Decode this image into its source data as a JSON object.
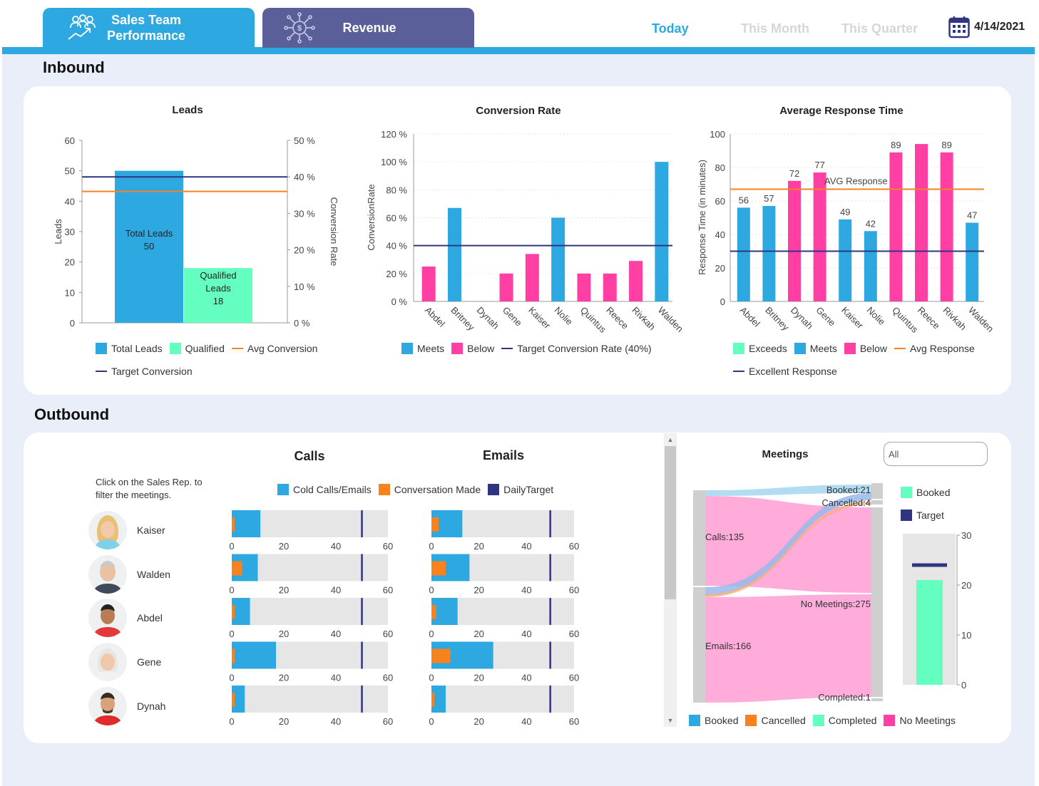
{
  "header": {
    "tabs": [
      {
        "label": "Sales Team Performance",
        "line1": "Sales Team",
        "line2": "Performance"
      },
      {
        "label": "Revenue"
      }
    ],
    "periods": [
      "Today",
      "This Month",
      "This Quarter"
    ],
    "active_period": "Today",
    "date": "4/14/2021",
    "icons": {
      "sales": "team-growth-icon",
      "revenue": "dollar-network-icon",
      "date": "calendar-icon"
    }
  },
  "colors": {
    "accent_blue": "#2ea8e0",
    "revenue_tab": "#5a5f99",
    "pink": "#ff3fa4",
    "green": "#64ffc0",
    "orange": "#f7821e",
    "navy": "#2f3580",
    "page_bg": "#e9eef9"
  },
  "inbound": {
    "title": "Inbound",
    "leads": {
      "title": "Leads",
      "left_axis_label": "Leads",
      "right_axis_label": "Conversion Rate",
      "bar_labels": [
        {
          "line1": "Total Leads",
          "line2": "50"
        },
        {
          "line1": "Qualified",
          "line2": "Leads",
          "line3": "18"
        }
      ],
      "legend": [
        "Total Leads",
        "Qualified",
        "Avg Conversion",
        "Target Conversion"
      ],
      "left_ticks": [
        "0",
        "10",
        "20",
        "30",
        "40",
        "50",
        "60"
      ],
      "right_ticks": [
        "0 %",
        "10 %",
        "20 %",
        "30 %",
        "40 %",
        "50 %"
      ]
    },
    "conversion": {
      "title": "Conversion Rate",
      "y_axis_label": "ConversionRate",
      "legend": [
        "Meets",
        "Below",
        "Target Conversion Rate (40%)"
      ],
      "y_ticks": [
        "0 %",
        "20 %",
        "40 %",
        "60 %",
        "80 %",
        "100 %",
        "120 %"
      ]
    },
    "response": {
      "title": "Average Response Time",
      "y_axis_label": "Response Time (in minutes)",
      "avg_label": "AVG Response",
      "legend": [
        "Exceeds",
        "Meets",
        "Below",
        "Avg Response",
        "Excellent Response"
      ],
      "y_ticks": [
        "0",
        "20",
        "40",
        "60",
        "80",
        "100"
      ]
    }
  },
  "outbound": {
    "title": "Outbound",
    "hint": "Click on the Sales Rep. to filter the meetings.",
    "calls_title": "Calls",
    "emails_title": "Emails",
    "legend": [
      "Cold Calls/Emails",
      "Conversation Made",
      "DailyTarget"
    ],
    "bar_ticks": [
      "0",
      "20",
      "40",
      "60"
    ],
    "reps": [
      {
        "name": "Kaiser",
        "calls": 11,
        "calls_conv": 1,
        "emails": 13,
        "emails_conv": 3
      },
      {
        "name": "Walden",
        "calls": 10,
        "calls_conv": 4,
        "emails": 16,
        "emails_conv": 6
      },
      {
        "name": "Abdel",
        "calls": 7,
        "calls_conv": 1,
        "emails": 11,
        "emails_conv": 2
      },
      {
        "name": "Gene",
        "calls": 17,
        "calls_conv": 1,
        "emails": 26,
        "emails_conv": 8
      },
      {
        "name": "Dynah",
        "calls": 5,
        "calls_conv": 1,
        "emails": 6,
        "emails_conv": 1
      }
    ],
    "daily_target": 50,
    "meetings": {
      "title": "Meetings",
      "filter_value": "All",
      "sankey_labels": [
        "Calls:135",
        "Emails:166",
        "Booked:21",
        "Cancelled:4",
        "No Meetings:275",
        "Completed:1"
      ],
      "legend": [
        "Booked",
        "Cancelled",
        "Completed",
        "No Meetings"
      ],
      "gauge_legend": [
        "Booked",
        "Target"
      ],
      "gauge_ticks": [
        "0",
        "10",
        "20",
        "30"
      ],
      "booked": 21,
      "target": 24
    }
  },
  "chart_data": [
    {
      "type": "bar",
      "title": "Leads",
      "categories": [
        "Total Leads",
        "Qualified Leads"
      ],
      "values": [
        50,
        18
      ],
      "ylabel": "Leads",
      "y2label": "Conversion Rate",
      "ylim": [
        0,
        60
      ],
      "y2lim": [
        0,
        50
      ],
      "lines": [
        {
          "name": "Avg Conversion",
          "value_pct": 36
        },
        {
          "name": "Target Conversion",
          "value_pct": 40
        }
      ],
      "legend_position": "bottom"
    },
    {
      "type": "bar",
      "title": "Conversion Rate",
      "categories": [
        "Abdel",
        "Britney",
        "Dynah",
        "Gene",
        "Kaiser",
        "Nolie",
        "Quintus",
        "Reece",
        "Rivkah",
        "Walden"
      ],
      "values": [
        25,
        67,
        0,
        20,
        34,
        60,
        20,
        20,
        29,
        100
      ],
      "status": [
        "Below",
        "Meets",
        "Below",
        "Below",
        "Below",
        "Meets",
        "Below",
        "Below",
        "Below",
        "Meets"
      ],
      "ylabel": "ConversionRate",
      "ylim": [
        0,
        120
      ],
      "target": 40,
      "legend_position": "bottom"
    },
    {
      "type": "bar",
      "title": "Average Response Time",
      "categories": [
        "Abdel",
        "Britney",
        "Dynah",
        "Gene",
        "Kaiser",
        "Nolie",
        "Quintus",
        "Reece",
        "Rivkah",
        "Walden"
      ],
      "values": [
        56,
        57,
        72,
        77,
        49,
        42,
        89,
        94,
        89,
        47
      ],
      "data_labels": [
        "56",
        "57",
        "72",
        "77",
        "49",
        "42",
        "89",
        "",
        "89",
        "47"
      ],
      "status": [
        "Meets",
        "Meets",
        "Below",
        "Below",
        "Meets",
        "Meets",
        "Below",
        "Below",
        "Below",
        "Meets"
      ],
      "ylabel": "Response Time (in minutes)",
      "ylim": [
        0,
        100
      ],
      "avg_response": 67,
      "excellent_response": 30,
      "legend_position": "bottom"
    }
  ]
}
